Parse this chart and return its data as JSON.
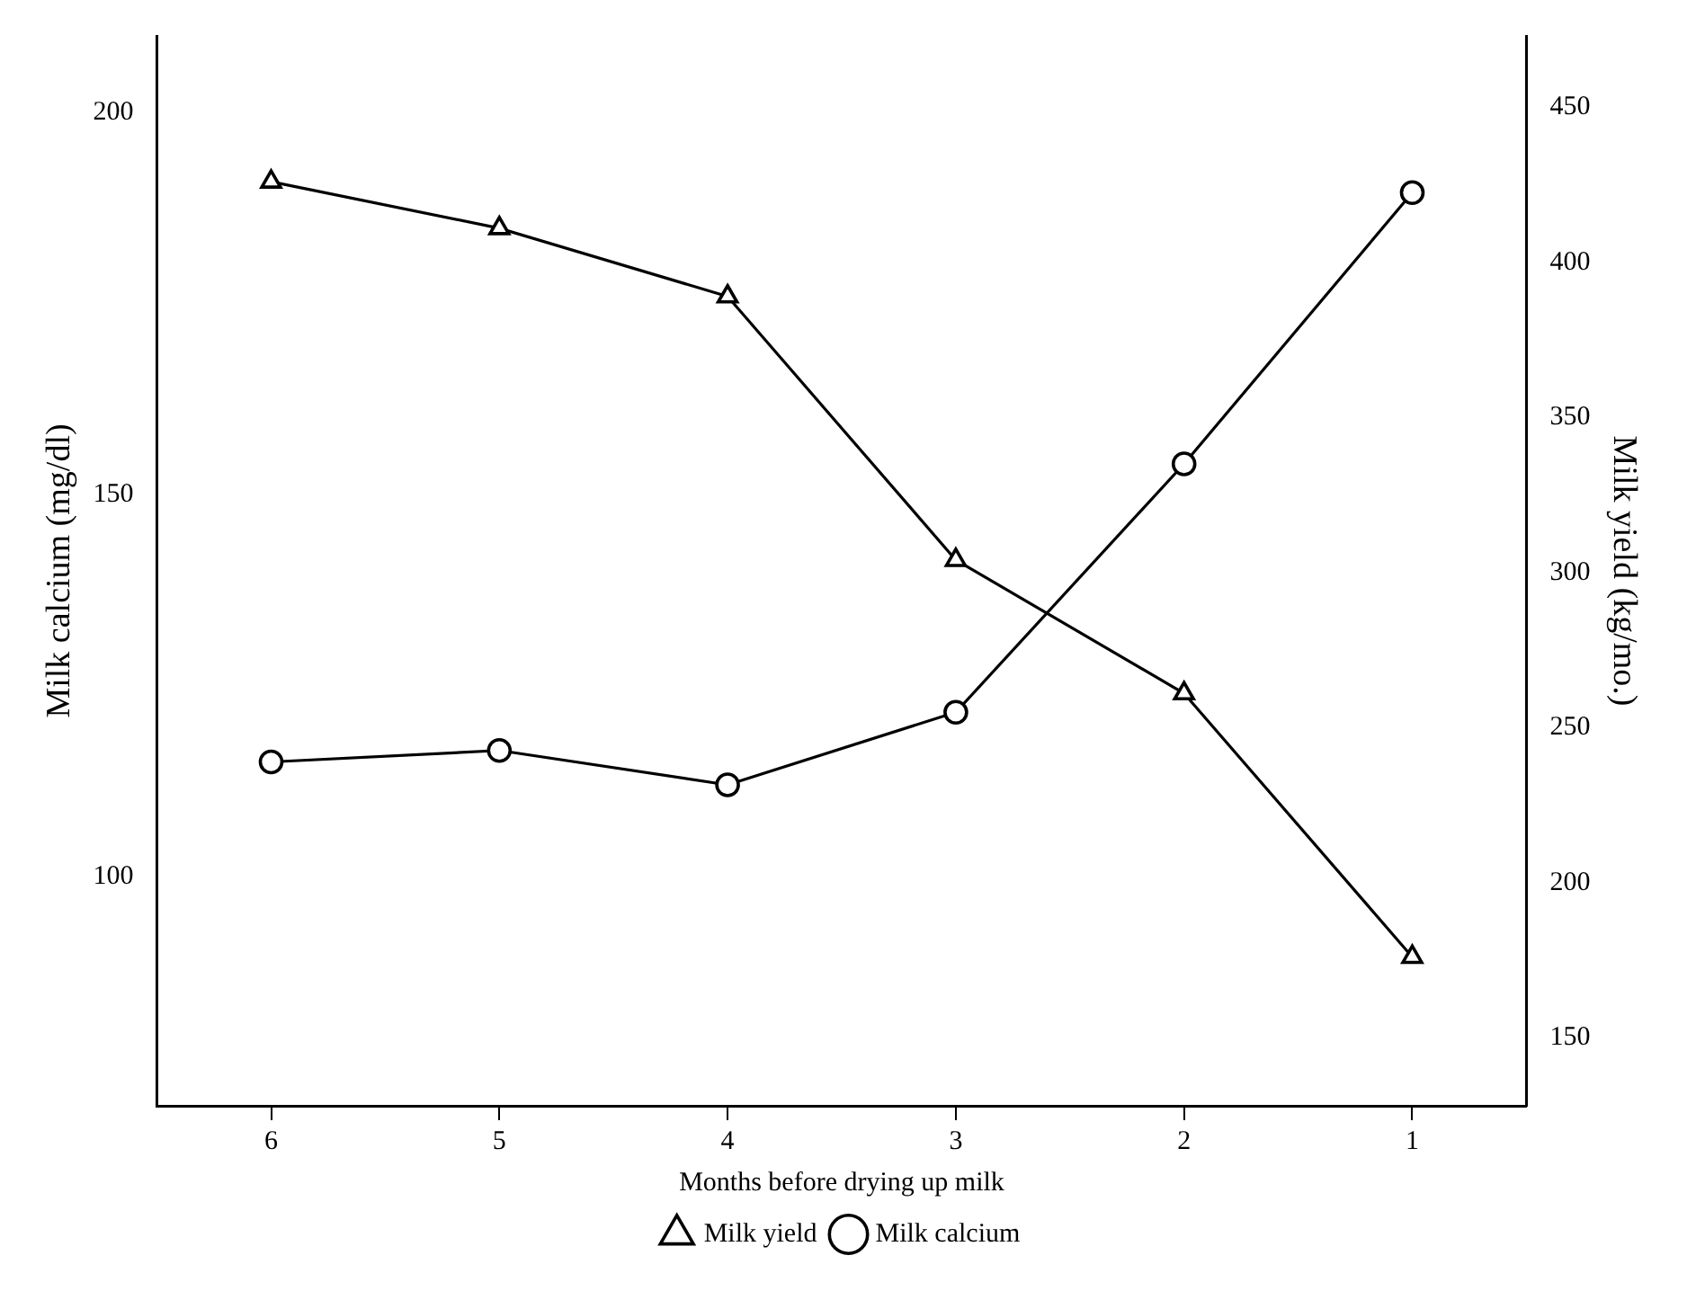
{
  "chart_data": {
    "type": "line",
    "xlabel": "Months before drying up milk",
    "ylabel": "Milk calcium (mg/dl)",
    "y2label": "Milk yield (kg/mo.)",
    "categories": [
      "6",
      "5",
      "4",
      "3",
      "2",
      "1"
    ],
    "series": [
      {
        "name": "Milk yield",
        "color": "#000000",
        "marker": "triangle",
        "axis": "y2",
        "values": [
          426,
          411,
          389,
          304,
          261,
          176
        ]
      },
      {
        "name": "Milk calcium",
        "color": "#000000",
        "marker": "circle",
        "values": [
          115,
          116.5,
          112,
          121.5,
          154,
          189.5
        ]
      }
    ],
    "ylim": [
      70,
      210
    ],
    "yticks": [
      100,
      150,
      200
    ],
    "y2lim": [
      128,
      473
    ],
    "y2ticks": [
      150,
      200,
      250,
      300,
      350,
      400,
      450
    ],
    "grid": false,
    "legend": "bottom",
    "line_style": "solid"
  }
}
